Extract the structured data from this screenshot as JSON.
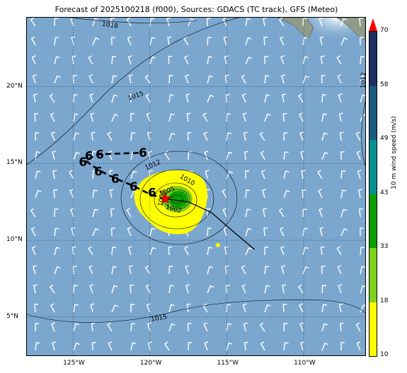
{
  "title": "Forecast of 2025100218 (f000), Sources: GDACS (TC track), GFS (Meteo)",
  "map": {
    "lon_range": [
      -128,
      -106
    ],
    "lat_range": [
      2.5,
      24.5
    ],
    "x_ticks": [
      "125°W",
      "120°W",
      "115°W",
      "110°W"
    ],
    "y_ticks": [
      "5°N",
      "10°N",
      "15°N",
      "20°N"
    ],
    "storm_center": {
      "lon": -119.0,
      "lat": 12.7
    },
    "track_past": [
      [
        -113.2,
        9.4
      ],
      [
        -114.5,
        10.5
      ],
      [
        -116.0,
        11.8
      ],
      [
        -117.5,
        12.5
      ],
      [
        -119.0,
        12.7
      ]
    ],
    "track_forecast": [
      [
        -119.0,
        12.7
      ],
      [
        -120.0,
        13.0
      ],
      [
        -121.2,
        13.6
      ],
      [
        -122.2,
        14.0
      ],
      [
        -123.2,
        14.5
      ],
      [
        -123.8,
        14.9
      ],
      [
        -124.2,
        15.2
      ],
      [
        -123.3,
        15.6
      ],
      [
        -120.5,
        15.7
      ]
    ],
    "tc_symbols": [
      {
        "lon": -120.5,
        "lat": 15.7
      },
      {
        "lon": -123.3,
        "lat": 15.6
      },
      {
        "lon": -124.0,
        "lat": 15.5
      },
      {
        "lon": -124.4,
        "lat": 15.1
      },
      {
        "lon": -123.4,
        "lat": 14.5
      },
      {
        "lon": -122.3,
        "lat": 14.0
      },
      {
        "lon": -121.1,
        "lat": 13.5
      },
      {
        "lon": -119.9,
        "lat": 13.1
      }
    ],
    "isobars": [
      {
        "label": "1018"
      },
      {
        "label": "1015"
      },
      {
        "label": "1012"
      },
      {
        "label": "1010"
      },
      {
        "label": "1008"
      },
      {
        "label": "1005"
      },
      {
        "label": "1002"
      },
      {
        "label": "1015"
      },
      {
        "label": "1015"
      },
      {
        "label": "1012"
      }
    ]
  },
  "colorbar": {
    "label": "10 m wind speed (m/s)",
    "ticks": [
      "10",
      "18",
      "33",
      "43",
      "49",
      "58",
      "70"
    ],
    "colors": [
      "#ffff00",
      "#7fd11c",
      "#0aa000",
      "#009191",
      "#1a5c80",
      "#1f3065"
    ],
    "extend_color": "#ff0000"
  }
}
